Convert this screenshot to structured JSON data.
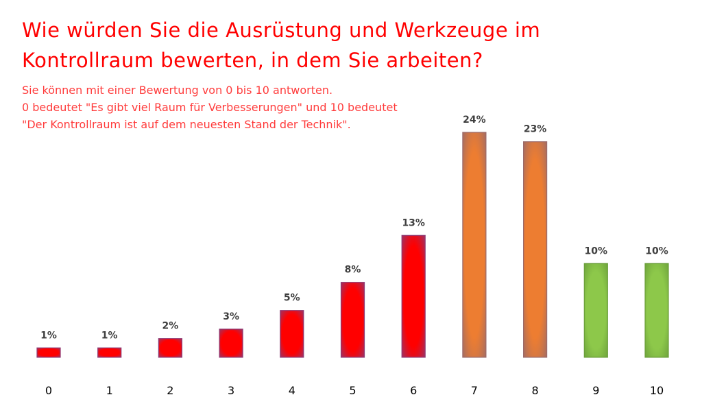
{
  "title_lines": [
    "Wie würden Sie die Ausrüstung und Werkzeuge im",
    "Kontrollraum bewerten, in dem Sie arbeiten?"
  ],
  "subtitle_lines": [
    "Sie können mit einer Bewertung von 0 bis 10 antworten.",
    "0 bedeutet \"Es gibt viel Raum für Verbesserungen\" und 10 bedeutet",
    "\"Der Kontrollraum ist auf dem neuesten Stand der Technik\"."
  ],
  "colors": {
    "title": "#ff0000",
    "subtitle": "#ff3b3b",
    "low": "#ff0000",
    "mid": "#ed7d31",
    "high": "#8dc84a",
    "low_border": "#8e3a74",
    "mid_border": "#9a6a6a",
    "high_border": "#6a9e3a"
  },
  "chart_data": {
    "type": "bar",
    "categories": [
      "0",
      "1",
      "2",
      "3",
      "4",
      "5",
      "6",
      "7",
      "8",
      "9",
      "10"
    ],
    "values": [
      1,
      1,
      2,
      3,
      5,
      8,
      13,
      24,
      23,
      10,
      10
    ],
    "data_labels": [
      "1%",
      "1%",
      "2%",
      "3%",
      "5%",
      "8%",
      "13%",
      "24%",
      "23%",
      "10%",
      "10%"
    ],
    "color_groups": [
      "low",
      "low",
      "low",
      "low",
      "low",
      "low",
      "low",
      "mid",
      "mid",
      "high",
      "high"
    ],
    "ylim": [
      0,
      24
    ],
    "xlabel": "",
    "ylabel": "",
    "grid": false
  }
}
